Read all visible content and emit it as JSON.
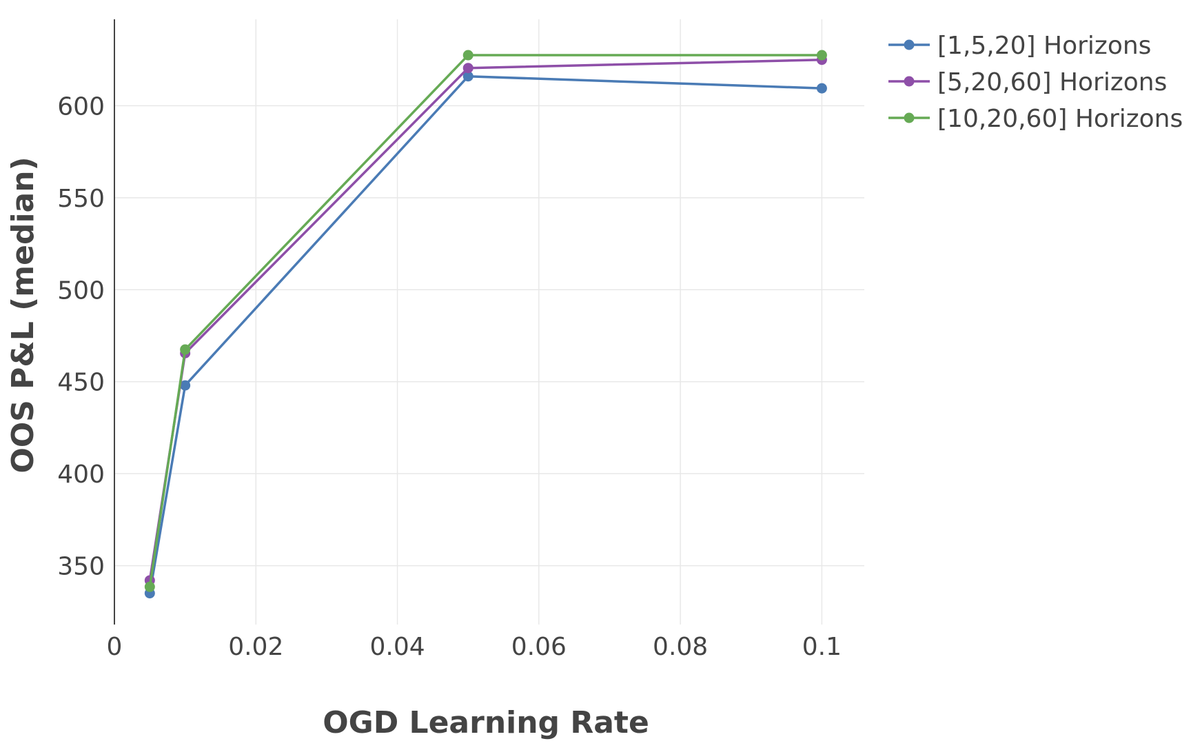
{
  "chart_data": {
    "type": "line",
    "title": "",
    "xlabel": "OGD Learning Rate",
    "ylabel": "OOS P&L (median)",
    "x": [
      0.005,
      0.01,
      0.05,
      0.1
    ],
    "xlim": [
      0,
      0.106
    ],
    "ylim": [
      318,
      647
    ],
    "x_ticks": [
      0,
      0.02,
      0.04,
      0.06,
      0.08,
      0.1
    ],
    "x_tick_labels": [
      "0",
      "0.02",
      "0.04",
      "0.06",
      "0.08",
      "0.1"
    ],
    "y_ticks": [
      350,
      400,
      450,
      500,
      550,
      600
    ],
    "y_tick_labels": [
      "350",
      "400",
      "450",
      "500",
      "550",
      "600"
    ],
    "grid": true,
    "legend_position": "top-right outside",
    "series": [
      {
        "name": "[1,5,20] Horizons",
        "color": "#4a7bb5",
        "values": [
          335,
          448,
          616,
          609.5
        ]
      },
      {
        "name": "[5,20,60] Horizons",
        "color": "#8e4fa8",
        "values": [
          342,
          465.5,
          620.5,
          625
        ]
      },
      {
        "name": "[10,20,60] Horizons",
        "color": "#66aa55",
        "values": [
          338.5,
          467.5,
          627.5,
          627.5
        ]
      }
    ]
  }
}
